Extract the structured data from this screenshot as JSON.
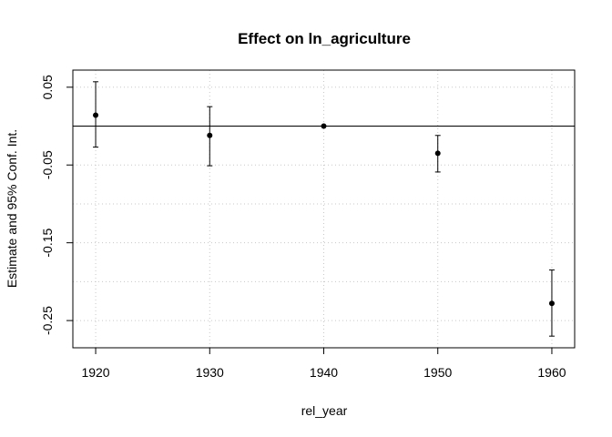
{
  "chart_data": {
    "type": "scatter",
    "title": "Effect on ln_agriculture",
    "xlabel": "rel_year",
    "ylabel": "Estimate and 95% Conf. Int.",
    "x": [
      1920,
      1930,
      1940,
      1950,
      1960
    ],
    "estimate": [
      0.014,
      -0.012,
      0.0,
      -0.035,
      -0.228
    ],
    "ci_lower": [
      -0.027,
      -0.051,
      0.0,
      -0.059,
      -0.27
    ],
    "ci_upper": [
      0.057,
      0.025,
      0.0,
      -0.012,
      -0.185
    ],
    "xlim": [
      1918,
      1962
    ],
    "ylim": [
      -0.285,
      0.072
    ],
    "x_ticks": [
      1920,
      1930,
      1940,
      1950,
      1960
    ],
    "x_tick_labels": [
      "1920",
      "1930",
      "1940",
      "1950",
      "1960"
    ],
    "y_ticks": [
      0.05,
      -0.05,
      -0.15,
      -0.25
    ],
    "y_tick_labels": [
      "0.05",
      "-0.05",
      "-0.15",
      "-0.25"
    ],
    "x_grid": [
      1920,
      1930,
      1940,
      1950,
      1960
    ],
    "y_grid": [
      0.05,
      0.0,
      -0.05,
      -0.1,
      -0.15,
      -0.2,
      -0.25
    ],
    "reference_line_y": 0,
    "grid": true,
    "grid_style": "dotted",
    "colors": {
      "points": "#000000",
      "grid": "#c8c8c8",
      "axis": "#000000"
    }
  }
}
